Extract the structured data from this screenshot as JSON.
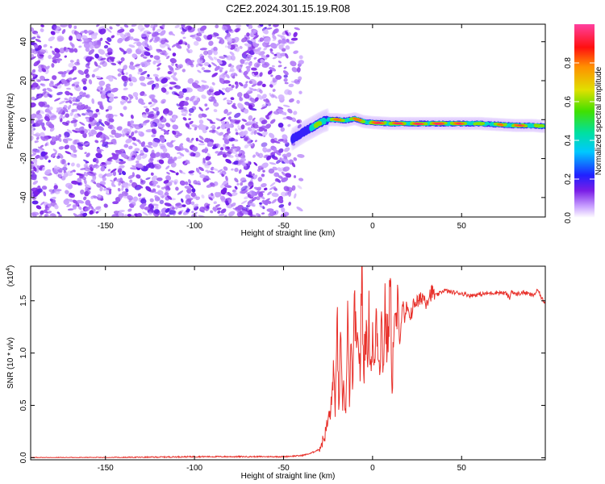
{
  "title": "C2E2.2024.301.15.19.R08",
  "chart_data": [
    {
      "type": "heatmap",
      "name": "spectrogram",
      "xlabel": "Height of straight line (km)",
      "ylabel": "Frequency (Hz)",
      "xlim": [
        -192,
        97
      ],
      "ylim": [
        -50,
        49
      ],
      "xticks": [
        -150,
        -100,
        -50,
        0,
        50
      ],
      "xtick_labels": [
        "-150",
        "-100",
        "-50",
        "0",
        "50"
      ],
      "yticks": [
        -40,
        -20,
        0,
        20,
        40
      ],
      "ytick_labels": [
        "-40",
        "-20",
        "0",
        "20",
        "40"
      ],
      "noise_region_x": [
        -192,
        -40
      ],
      "transition_region_x": [
        -50,
        -30
      ],
      "signal_track": {
        "x": [
          -45,
          -38,
          -32,
          -28,
          -25,
          -20,
          -15,
          -10,
          -5,
          0,
          10,
          20,
          30,
          40,
          50,
          60,
          70,
          80,
          90,
          97
        ],
        "freq": [
          -10,
          -6,
          -3,
          -1,
          0,
          0,
          -0.5,
          0.5,
          -1,
          -1.5,
          -2,
          -2,
          -2,
          -2,
          -2,
          -2,
          -2.5,
          -3,
          -3,
          -3.5
        ],
        "peak_amplitude": [
          0.3,
          0.45,
          0.6,
          0.7,
          0.75,
          0.85,
          0.9,
          0.85,
          0.9,
          0.95,
          1.0,
          0.95,
          1.0,
          1.0,
          0.9,
          0.7,
          0.75,
          0.95,
          0.8,
          0.6
        ]
      },
      "grid": false
    },
    {
      "type": "colorbar",
      "name": "amplitude-colorbar",
      "label": "Normalized spectral amplitude",
      "range": [
        0,
        1
      ],
      "ticks": [
        0.0,
        0.2,
        0.4,
        0.6,
        0.8
      ],
      "tick_labels": [
        "0.0",
        "0.2",
        "0.4",
        "0.6",
        "0.8"
      ],
      "colormap": "rainbow (white-violet-blue-cyan-green-yellow-red-magenta)"
    },
    {
      "type": "line",
      "name": "snr-plot",
      "xlabel": "Height of straight line (km)",
      "ylabel": "SNR (10 * v/v)",
      "y_multiplier": "(x10",
      "y_multiplier_exp": "4",
      "xlim": [
        -192,
        97
      ],
      "ylim": [
        -0.02,
        1.83
      ],
      "xticks": [
        -150,
        -100,
        -50,
        0,
        50
      ],
      "xtick_labels": [
        "-150",
        "-100",
        "-50",
        "0",
        "50"
      ],
      "yticks": [
        0.0,
        0.5,
        1.0,
        1.5
      ],
      "ytick_labels": [
        "0.0",
        "0.5",
        "1.0",
        "1.5"
      ],
      "series": [
        {
          "color": "#e8302a",
          "x": [
            -192,
            -150,
            -100,
            -50,
            -40,
            -35,
            -30,
            -27,
            -25,
            -23,
            -22,
            -21,
            -20,
            -19,
            -18,
            -17,
            -16,
            -15,
            -14,
            -13,
            -12,
            -11,
            -10,
            -9,
            -8,
            -7,
            -6,
            -5,
            -4,
            -3,
            -2,
            -1,
            0,
            1,
            2,
            3,
            4,
            5,
            6,
            7,
            8,
            9,
            10,
            11,
            12,
            13,
            14,
            15,
            16,
            17,
            18,
            19,
            20,
            22,
            24,
            26,
            28,
            30,
            33,
            36,
            40,
            45,
            50,
            55,
            60,
            65,
            70,
            75,
            77,
            78,
            80,
            85,
            90,
            93,
            95,
            97
          ],
          "y": [
            0.0,
            0.0,
            0.01,
            0.01,
            0.02,
            0.04,
            0.08,
            0.2,
            0.35,
            0.5,
            0.9,
            0.35,
            1.5,
            0.4,
            1.1,
            0.5,
            0.7,
            0.4,
            1.3,
            0.6,
            1.0,
            0.7,
            1.55,
            0.9,
            1.2,
            0.8,
            1.85,
            0.75,
            1.3,
            0.95,
            1.35,
            0.85,
            1.15,
            0.8,
            1.4,
            1.1,
            0.9,
            1.3,
            0.85,
            1.5,
            1.05,
            1.25,
            1.68,
            0.65,
            1.3,
            1.2,
            1.45,
            1.1,
            1.3,
            1.5,
            1.25,
            1.45,
            1.35,
            1.4,
            1.5,
            1.48,
            1.55,
            1.5,
            1.58,
            1.55,
            1.6,
            1.58,
            1.57,
            1.55,
            1.56,
            1.57,
            1.58,
            1.57,
            1.52,
            1.6,
            1.56,
            1.58,
            1.55,
            1.6,
            1.52,
            1.48
          ]
        }
      ],
      "grid": false
    }
  ]
}
